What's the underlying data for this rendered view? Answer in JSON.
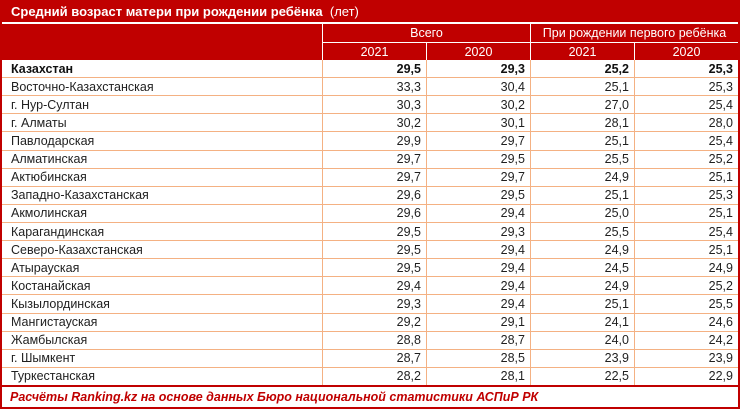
{
  "colors": {
    "accent_dark_red": "#C00000",
    "grid_light_orange": "#F4B183",
    "header_text": "#FFFFFF",
    "body_text": "#1F1F1F"
  },
  "chart_data": {
    "type": "table",
    "title": "Средний возраст матери при рождении ребёнка",
    "title_unit": "(лет)",
    "column_groups": [
      "Всего",
      "При рождении первого ребёнка"
    ],
    "columns": [
      "2021",
      "2020",
      "2021",
      "2020"
    ],
    "rows": [
      {
        "name": "Казахстан",
        "values": [
          "29,5",
          "29,3",
          "25,2",
          "25,3"
        ],
        "bold": true
      },
      {
        "name": "Восточно-Казахстанская",
        "values": [
          "33,3",
          "30,4",
          "25,1",
          "25,3"
        ],
        "bold": false
      },
      {
        "name": "г. Нур-Султан",
        "values": [
          "30,3",
          "30,2",
          "27,0",
          "25,4"
        ],
        "bold": false
      },
      {
        "name": "г. Алматы",
        "values": [
          "30,2",
          "30,1",
          "28,1",
          "28,0"
        ],
        "bold": false
      },
      {
        "name": "Павлодарская",
        "values": [
          "29,9",
          "29,7",
          "25,1",
          "25,4"
        ],
        "bold": false
      },
      {
        "name": "Алматинская",
        "values": [
          "29,7",
          "29,5",
          "25,5",
          "25,2"
        ],
        "bold": false
      },
      {
        "name": "Актюбинская",
        "values": [
          "29,7",
          "29,7",
          "24,9",
          "25,1"
        ],
        "bold": false
      },
      {
        "name": "Западно-Казахстанская",
        "values": [
          "29,6",
          "29,5",
          "25,1",
          "25,3"
        ],
        "bold": false
      },
      {
        "name": "Акмолинская",
        "values": [
          "29,6",
          "29,4",
          "25,0",
          "25,1"
        ],
        "bold": false
      },
      {
        "name": "Карагандинская",
        "values": [
          "29,5",
          "29,3",
          "25,5",
          "25,4"
        ],
        "bold": false
      },
      {
        "name": "Северо-Казахстанская",
        "values": [
          "29,5",
          "29,4",
          "24,9",
          "25,1"
        ],
        "bold": false
      },
      {
        "name": "Атырауская",
        "values": [
          "29,5",
          "29,4",
          "24,5",
          "24,9"
        ],
        "bold": false
      },
      {
        "name": "Костанайская",
        "values": [
          "29,4",
          "29,4",
          "24,9",
          "25,2"
        ],
        "bold": false
      },
      {
        "name": "Кызылординская",
        "values": [
          "29,3",
          "29,4",
          "25,1",
          "25,5"
        ],
        "bold": false
      },
      {
        "name": "Мангистауская",
        "values": [
          "29,2",
          "29,1",
          "24,1",
          "24,6"
        ],
        "bold": false
      },
      {
        "name": "Жамбылская",
        "values": [
          "28,8",
          "28,7",
          "24,0",
          "24,2"
        ],
        "bold": false
      },
      {
        "name": "г. Шымкент",
        "values": [
          "28,7",
          "28,5",
          "23,9",
          "23,9"
        ],
        "bold": false
      },
      {
        "name": "Туркестанская",
        "values": [
          "28,2",
          "28,1",
          "22,5",
          "22,9"
        ],
        "bold": false
      }
    ],
    "footer": "Расчёты Ranking.kz на основе данных Бюро национальной статистики АСПиР РК",
    "layout": {
      "grid": true,
      "legend_position": "none"
    }
  }
}
